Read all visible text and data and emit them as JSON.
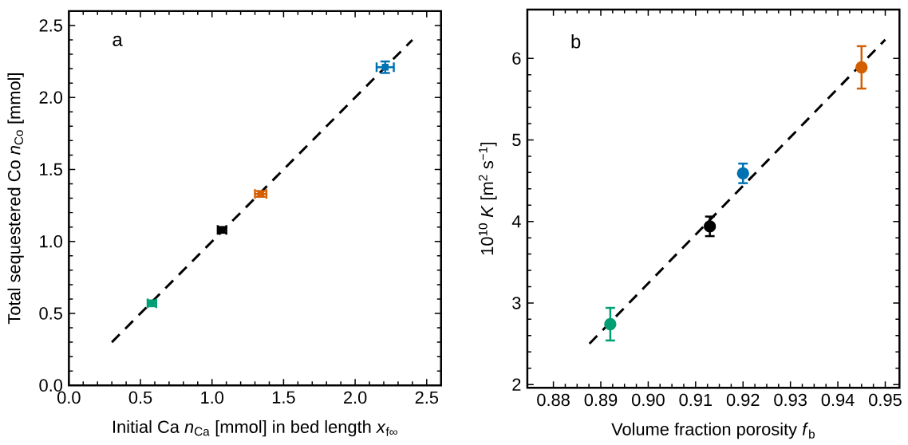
{
  "chart_data": [
    {
      "type": "scatter",
      "xlabel": "Initial Ca *n*$_{Ca}$ [mmol] in bed length *x*$_{f∞}$",
      "ylabel": "Total sequestered Co *n*$_{Co}$ [mmol]",
      "annotations": [
        "a"
      ],
      "xlim": [
        0,
        2.6
      ],
      "ylim": [
        0,
        2.6
      ],
      "xticks": [
        {
          "value": 0,
          "label": "0.0"
        },
        0.5,
        {
          "value": 1,
          "label": "1.0"
        },
        1.5,
        {
          "value": 2,
          "label": "2.0"
        },
        2.5
      ],
      "yticks": [
        {
          "value": 0,
          "label": "0.0"
        },
        0.5,
        {
          "value": 1,
          "label": "1.0"
        },
        1.5,
        {
          "value": 2,
          "label": "2.0"
        },
        2.5
      ],
      "series": [
        {
          "type": "line",
          "line_style": "dashed",
          "marker": "none",
          "color": "#000000",
          "x": [
            0.3,
            2.4
          ],
          "values": [
            0.3,
            2.4
          ]
        },
        {
          "marker": "square",
          "color": "#009e73",
          "x": [
            0.58
          ],
          "values": [
            0.57
          ],
          "errors": [
            0.02
          ],
          "xerrors": [
            0.03
          ]
        },
        {
          "marker": "square",
          "color": "#000000",
          "x": [
            1.07
          ],
          "values": [
            1.08
          ],
          "errors": [
            0.02
          ],
          "xerrors": [
            0.03
          ]
        },
        {
          "marker": "square",
          "color": "#d55e00",
          "x": [
            1.34
          ],
          "values": [
            1.33
          ],
          "errors": [
            0.02
          ],
          "xerrors": [
            0.04
          ]
        },
        {
          "marker": "square",
          "color": "#0072b2",
          "x": [
            2.21
          ],
          "values": [
            2.21
          ],
          "errors": [
            0.04
          ],
          "xerrors": [
            0.06
          ]
        }
      ]
    },
    {
      "type": "scatter",
      "xlabel": "Volume fraction porosity *f*$_{b}$",
      "ylabel": "10$^{10}$ *K* [m$^{2}$ s$^{−1}$]",
      "annotations": [
        "b"
      ],
      "xlim": [
        0.8745,
        0.953
      ],
      "ylim": [
        1.96,
        6.6
      ],
      "xticks": [
        0.88,
        0.89,
        {
          "value": 0.9,
          "label": "0.90"
        },
        0.91,
        0.92,
        0.93,
        0.94,
        0.95
      ],
      "yticks": [
        2,
        3,
        4,
        5,
        6
      ],
      "series": [
        {
          "type": "line",
          "line_style": "dashed",
          "marker": "none",
          "color": "#000000",
          "x": [
            0.8876,
            0.95
          ],
          "values": [
            2.5,
            6.23
          ]
        },
        {
          "marker": "circle",
          "color": "#009e73",
          "x": [
            0.892
          ],
          "values": [
            2.74
          ],
          "errors": [
            0.2
          ]
        },
        {
          "marker": "circle",
          "color": "#000000",
          "x": [
            0.913
          ],
          "values": [
            3.94
          ],
          "errors": [
            0.12
          ]
        },
        {
          "marker": "circle",
          "color": "#0072b2",
          "x": [
            0.92
          ],
          "values": [
            4.59
          ],
          "errors": [
            0.12
          ]
        },
        {
          "marker": "circle",
          "color": "#d55e00",
          "x": [
            0.945
          ],
          "values": [
            5.89
          ],
          "errors": [
            0.26
          ]
        }
      ]
    }
  ]
}
